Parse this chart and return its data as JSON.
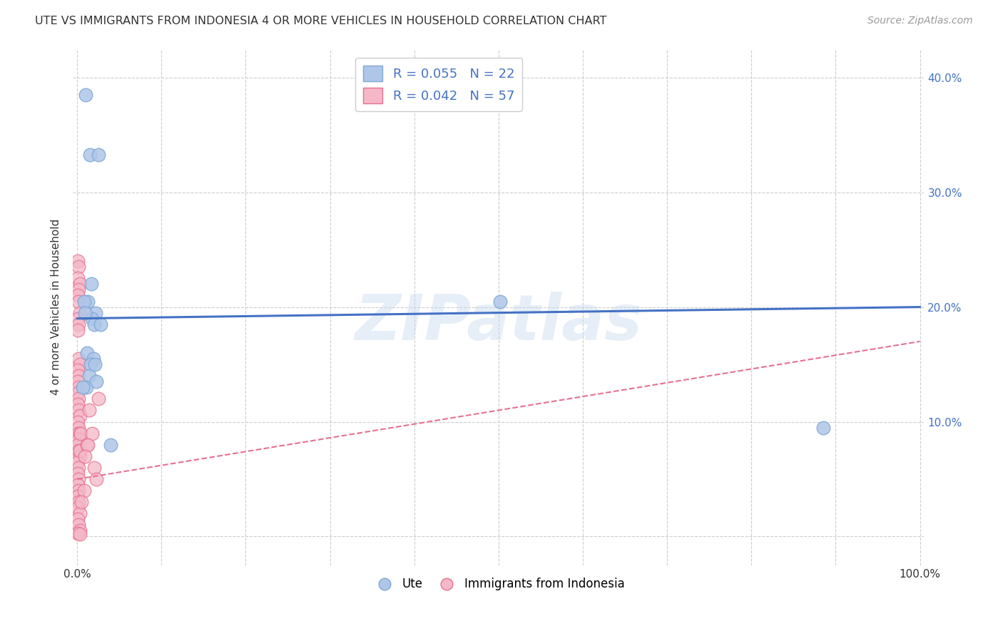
{
  "title": "UTE VS IMMIGRANTS FROM INDONESIA 4 OR MORE VEHICLES IN HOUSEHOLD CORRELATION CHART",
  "source": "Source: ZipAtlas.com",
  "ylabel": "4 or more Vehicles in Household",
  "watermark": "ZIPatlas",
  "xlim": [
    -0.005,
    1.005
  ],
  "ylim": [
    -0.025,
    0.425
  ],
  "xticks": [
    0.0,
    0.1,
    0.2,
    0.3,
    0.4,
    0.5,
    0.6,
    0.7,
    0.8,
    0.9,
    1.0
  ],
  "xticklabels": [
    "0.0%",
    "",
    "",
    "",
    "",
    "",
    "",
    "",
    "",
    "",
    "100.0%"
  ],
  "yticks": [
    0.0,
    0.1,
    0.2,
    0.3,
    0.4
  ],
  "right_yticklabels": [
    "",
    "10.0%",
    "20.0%",
    "30.0%",
    "40.0%"
  ],
  "legend1_label": "R = 0.055   N = 22",
  "legend2_label": "R = 0.042   N = 57",
  "legend1_color": "#aec6e8",
  "legend2_color": "#f4b8c8",
  "scatter_ute_x": [
    0.01,
    0.015,
    0.025,
    0.017,
    0.013,
    0.022,
    0.018,
    0.02,
    0.008,
    0.012,
    0.019,
    0.016,
    0.014,
    0.011,
    0.023,
    0.021,
    0.502,
    0.885,
    0.028,
    0.007,
    0.009,
    0.04
  ],
  "scatter_ute_y": [
    0.385,
    0.333,
    0.333,
    0.22,
    0.205,
    0.195,
    0.19,
    0.185,
    0.205,
    0.16,
    0.155,
    0.15,
    0.14,
    0.13,
    0.135,
    0.15,
    0.205,
    0.095,
    0.185,
    0.13,
    0.195,
    0.08
  ],
  "scatter_indo_x": [
    0.001,
    0.002,
    0.001,
    0.003,
    0.002,
    0.001,
    0.002,
    0.003,
    0.001,
    0.002,
    0.001,
    0.002,
    0.003,
    0.001,
    0.002,
    0.001,
    0.002,
    0.001,
    0.002,
    0.001,
    0.002,
    0.003,
    0.001,
    0.002,
    0.001,
    0.003,
    0.002,
    0.001,
    0.002,
    0.003,
    0.001,
    0.002,
    0.001,
    0.002,
    0.001,
    0.002,
    0.001,
    0.002,
    0.001,
    0.003,
    0.001,
    0.002,
    0.003,
    0.001,
    0.003,
    0.014,
    0.004,
    0.003,
    0.012,
    0.025,
    0.018,
    0.013,
    0.009,
    0.02,
    0.023,
    0.008,
    0.005
  ],
  "scatter_indo_y": [
    0.24,
    0.235,
    0.225,
    0.22,
    0.215,
    0.21,
    0.205,
    0.195,
    0.19,
    0.185,
    0.18,
    0.155,
    0.15,
    0.145,
    0.14,
    0.135,
    0.13,
    0.125,
    0.12,
    0.115,
    0.11,
    0.105,
    0.1,
    0.095,
    0.09,
    0.09,
    0.085,
    0.08,
    0.075,
    0.07,
    0.065,
    0.06,
    0.055,
    0.05,
    0.045,
    0.04,
    0.035,
    0.03,
    0.025,
    0.02,
    0.015,
    0.01,
    0.005,
    0.003,
    0.002,
    0.11,
    0.09,
    0.075,
    0.08,
    0.12,
    0.09,
    0.08,
    0.07,
    0.06,
    0.05,
    0.04,
    0.03
  ],
  "ute_line_x": [
    0.0,
    1.0
  ],
  "ute_line_y": [
    0.19,
    0.2
  ],
  "indo_line_x": [
    0.0,
    1.0
  ],
  "indo_line_y": [
    0.05,
    0.17
  ],
  "ute_line_color": "#4472c4",
  "indo_line_color": "#e87090",
  "dot_color_ute": "#aec6e8",
  "dot_color_indo": "#f4b8c8",
  "dot_edge_ute": "#7fa8d4",
  "dot_edge_indo": "#e87090",
  "background_color": "#ffffff",
  "grid_color": "#cccccc"
}
